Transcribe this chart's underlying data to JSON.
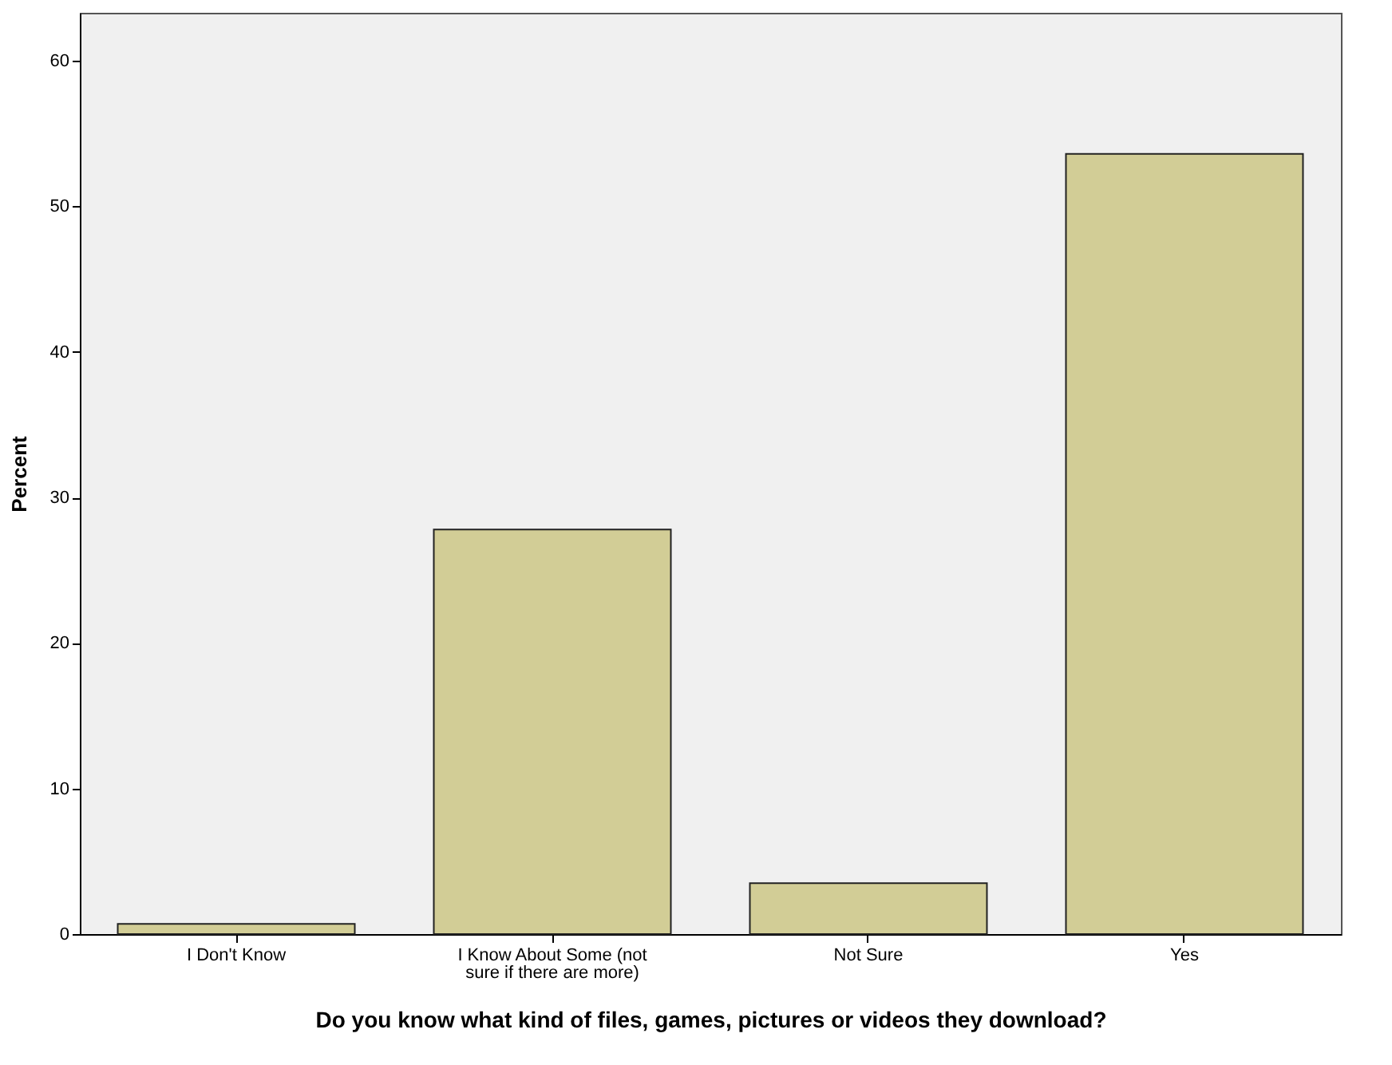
{
  "chart_data": {
    "type": "bar",
    "xlabel": "Do you know what kind of files, games, pictures or videos they download?",
    "ylabel": "Percent",
    "categories": [
      "I Don't Know",
      "I Know About Some (not sure if there are more)",
      "Not Sure",
      "Yes"
    ],
    "values": [
      0.7,
      27.8,
      3.5,
      53.6
    ],
    "color": "#d2cd96",
    "ylim": [
      0,
      63.3
    ],
    "yticks": [
      0,
      10,
      20,
      30,
      40,
      50,
      60
    ],
    "grid": false
  }
}
